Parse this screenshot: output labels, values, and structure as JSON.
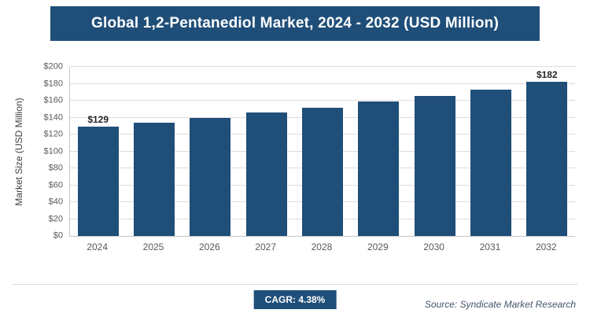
{
  "header": {
    "title": "Global 1,2-Pentanediol Market, 2024 - 2032 (USD Million)"
  },
  "chart_data": {
    "type": "bar",
    "title": "Global 1,2-Pentanediol Market, 2024 - 2032 (USD Million)",
    "categories": [
      "2024",
      "2025",
      "2026",
      "2027",
      "2028",
      "2029",
      "2030",
      "2031",
      "2032"
    ],
    "values": [
      129,
      134,
      140,
      146,
      152,
      159,
      166,
      173,
      182
    ],
    "point_labels": [
      "$129",
      null,
      null,
      null,
      null,
      null,
      null,
      null,
      "$182"
    ],
    "ylabel": "Market Size (USD Million)",
    "xlabel": "",
    "ylim": [
      0,
      200
    ],
    "ytick_step": 20,
    "ytick_labels": [
      "$0",
      "$20",
      "$40",
      "$60",
      "$80",
      "$100",
      "$120",
      "$140",
      "$160",
      "$180",
      "$200"
    ],
    "grid": "horizontal",
    "legend": "none",
    "bar_color": "#1F4E79"
  },
  "footer": {
    "cagr_label": "CAGR: 4.38%",
    "source": "Source: Syndicate Market Research"
  },
  "colors": {
    "banner": "#1F4E79",
    "bar": "#1F4E79",
    "gridline": "#dcdcdc"
  }
}
